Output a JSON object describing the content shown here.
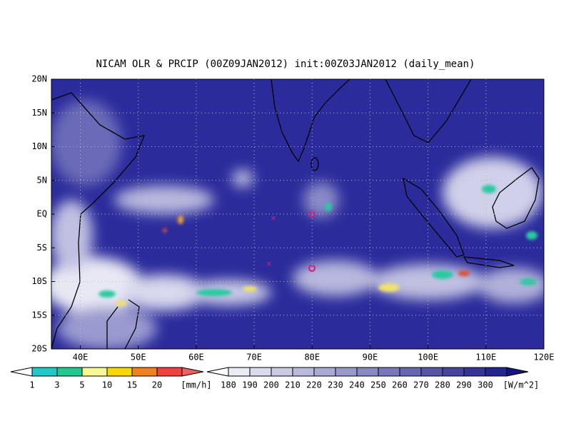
{
  "title": "NICAM OLR & PRCIP (00Z09JAN2012) init:00Z03JAN2012 (daily_mean)",
  "lat_labels": [
    "20N",
    "15N",
    "10N",
    "5N",
    "EQ",
    "5S",
    "10S",
    "15S",
    "20S"
  ],
  "lon_labels": [
    "40E",
    "50E",
    "60E",
    "70E",
    "80E",
    "90E",
    "100E",
    "110E",
    "120E"
  ],
  "precip_legend": {
    "labels": [
      "1",
      "3",
      "5",
      "10",
      "15",
      "20"
    ],
    "unit": "[mm/h]"
  },
  "olr_legend": {
    "labels": [
      "180",
      "190",
      "200",
      "210",
      "220",
      "230",
      "240",
      "250",
      "260",
      "270",
      "280",
      "290",
      "300"
    ],
    "unit": "[W/m^2]"
  }
}
